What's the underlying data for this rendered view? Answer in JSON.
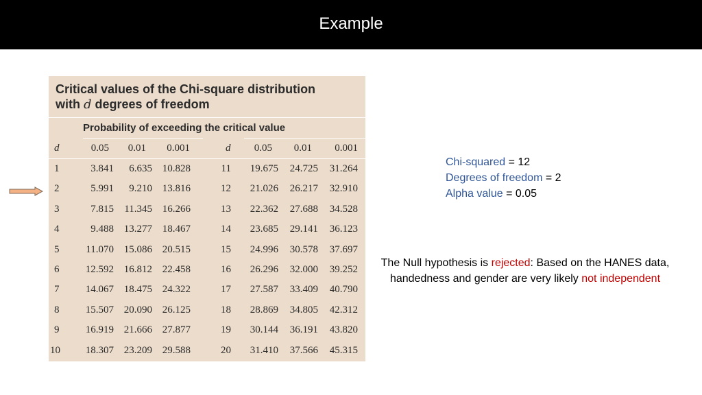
{
  "slide": {
    "title": "Example"
  },
  "table": {
    "title_line1": "Critical values of the Chi-square distribution",
    "title_line2_prefix": "with ",
    "title_line2_italic": "d",
    "title_line2_suffix": " degrees of freedom",
    "prob_header": "Probability of exceeding the critical value",
    "col_headers": [
      "d",
      "0.05",
      "0.01",
      "0.001",
      "d",
      "0.05",
      "0.01",
      "0.001"
    ],
    "rows": [
      [
        "1",
        "3.841",
        "6.635",
        "10.828",
        "11",
        "19.675",
        "24.725",
        "31.264"
      ],
      [
        "2",
        "5.991",
        "9.210",
        "13.816",
        "12",
        "21.026",
        "26.217",
        "32.910"
      ],
      [
        "3",
        "7.815",
        "11.345",
        "16.266",
        "13",
        "22.362",
        "27.688",
        "34.528"
      ],
      [
        "4",
        "9.488",
        "13.277",
        "18.467",
        "14",
        "23.685",
        "29.141",
        "36.123"
      ],
      [
        "5",
        "11.070",
        "15.086",
        "20.515",
        "15",
        "24.996",
        "30.578",
        "37.697"
      ],
      [
        "6",
        "12.592",
        "16.812",
        "22.458",
        "16",
        "26.296",
        "32.000",
        "39.252"
      ],
      [
        "7",
        "14.067",
        "18.475",
        "24.322",
        "17",
        "27.587",
        "33.409",
        "40.790"
      ],
      [
        "8",
        "15.507",
        "20.090",
        "26.125",
        "18",
        "28.869",
        "34.805",
        "42.312"
      ],
      [
        "9",
        "16.919",
        "21.666",
        "27.877",
        "19",
        "30.144",
        "36.191",
        "43.820"
      ],
      [
        "10",
        "18.307",
        "23.209",
        "29.588",
        "20",
        "31.410",
        "37.566",
        "45.315"
      ]
    ]
  },
  "info": {
    "chi_label": "Chi-squared",
    "chi_value": " = 12",
    "dof_label": "Degrees of freedom",
    "dof_value": " = 2",
    "alpha_label": "Alpha value",
    "alpha_value": " = 0.05"
  },
  "conclusion": {
    "part1": "The Null hypothesis is ",
    "rejected": "rejected",
    "part2": ": Based on the HANES data, handedness and gender are very likely ",
    "not_independent": "not independent"
  },
  "colors": {
    "title_bar": "#000000",
    "table_bg": "#ecdccb",
    "label_blue": "#2f5597",
    "highlight_red": "#c00000",
    "arrow_fill": "#f4b183"
  },
  "icons": {
    "pointer": "right-arrow-icon"
  }
}
